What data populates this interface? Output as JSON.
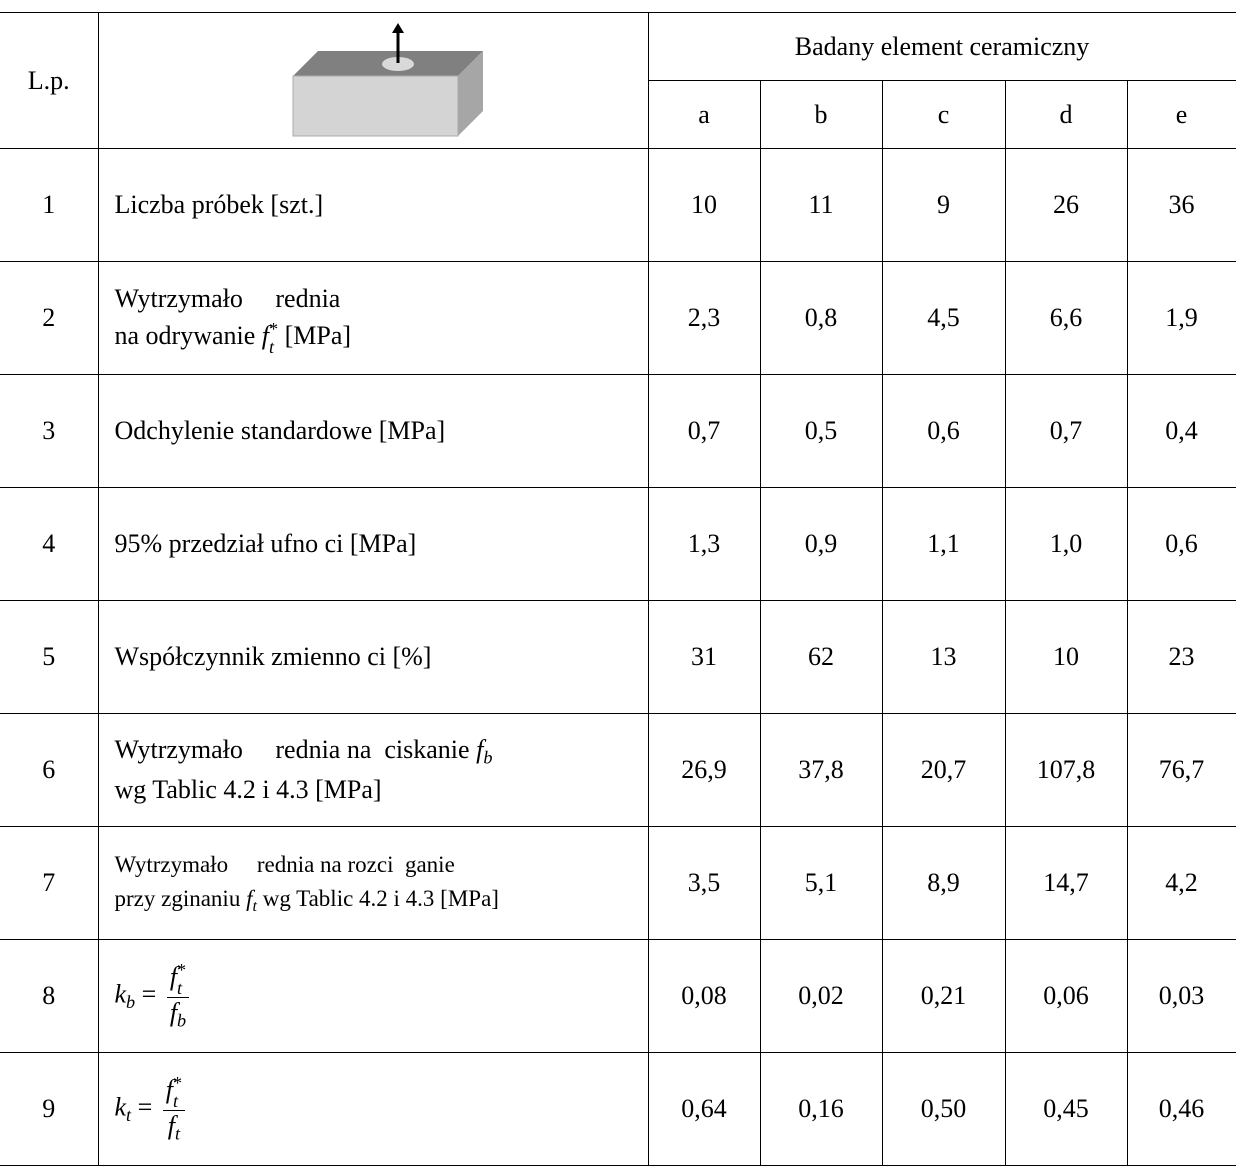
{
  "table": {
    "header": {
      "lp": "L.p.",
      "group": "Badany element ceramiczny",
      "columns": [
        "a",
        "b",
        "c",
        "d",
        "e"
      ]
    },
    "rows": [
      {
        "lp": "1",
        "label": [
          "Liczba próbek [szt.]"
        ],
        "values": [
          "10",
          "11",
          "9",
          "26",
          "36"
        ]
      },
      {
        "lp": "2",
        "label": [
          "Wytrzymało     rednia",
          "na odrywanie ",
          "f",
          "t",
          "*",
          " [MPa]"
        ],
        "values": [
          "2,3",
          "0,8",
          "4,5",
          "6,6",
          "1,9"
        ]
      },
      {
        "lp": "3",
        "label": [
          "Odchylenie standardowe [MPa]"
        ],
        "values": [
          "0,7",
          "0,5",
          "0,6",
          "0,7",
          "0,4"
        ]
      },
      {
        "lp": "4",
        "label": [
          "95% przedział ufno ci [MPa]"
        ],
        "values": [
          "1,3",
          "0,9",
          "1,1",
          "1,0",
          "0,6"
        ]
      },
      {
        "lp": "5",
        "label": [
          "Współczynnik zmienno ci [%]"
        ],
        "values": [
          "31",
          "62",
          "13",
          "10",
          "23"
        ]
      },
      {
        "lp": "6",
        "label": [
          "Wytrzymało     rednia na  ciskanie ",
          "f",
          "b",
          "wg Tablic 4.2 i 4.3 [MPa]"
        ],
        "values": [
          "26,9",
          "37,8",
          "20,7",
          "107,8",
          "76,7"
        ]
      },
      {
        "lp": "7",
        "label": [
          "Wytrzymało     rednia na rozci  ganie",
          "przy zginaniu ",
          "f",
          "t",
          " wg Tablic 4.2 i 4.3 [MPa]"
        ],
        "values": [
          "3,5",
          "5,1",
          "8,9",
          "14,7",
          "4,2"
        ]
      },
      {
        "lp": "8",
        "label": [
          "k",
          "b",
          " = ",
          "f",
          "t",
          "*",
          "f",
          "b"
        ],
        "values": [
          "0,08",
          "0,02",
          "0,21",
          "0,06",
          "0,03"
        ]
      },
      {
        "lp": "9",
        "label": [
          "k",
          "t",
          " = ",
          "f",
          "t",
          "*",
          "f",
          "t"
        ],
        "values": [
          "0,64",
          "0,16",
          "0,50",
          "0,45",
          "0,46"
        ]
      }
    ]
  }
}
